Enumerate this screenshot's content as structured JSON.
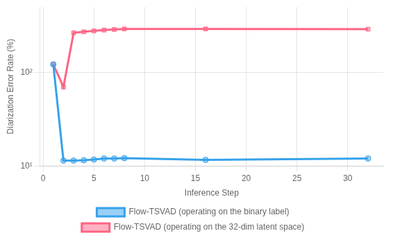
{
  "chart_data": {
    "type": "line",
    "xlabel": "Inference Step",
    "ylabel": "Diarization Error Rate (%)",
    "x": [
      1,
      2,
      3,
      4,
      5,
      6,
      7,
      8,
      16,
      32
    ],
    "series": [
      {
        "name": "Flow-TSVAD (operating on the binary label)",
        "marker": "circle",
        "values": [
          122.0,
          11.4,
          11.4,
          11.5,
          11.7,
          12.0,
          12.0,
          12.1,
          11.6,
          12.0
        ]
      },
      {
        "name": "Flow-TSVAD (operating on the 32-dim latent space)",
        "marker": "square",
        "values": [
          122.0,
          70.0,
          265.0,
          272.0,
          278.0,
          284.0,
          288.0,
          292.0,
          292.0,
          290.0
        ]
      }
    ],
    "log": "y",
    "xlim": [
      -0.3,
      33.5
    ],
    "xticks": [
      0,
      5,
      10,
      15,
      20,
      25,
      30
    ],
    "ylim": [
      10,
      500
    ],
    "yticks": [
      {
        "value": 10,
        "label": "10¹"
      },
      {
        "value": 100,
        "label": "10²"
      }
    ],
    "grid": true,
    "legend": "bottom"
  }
}
